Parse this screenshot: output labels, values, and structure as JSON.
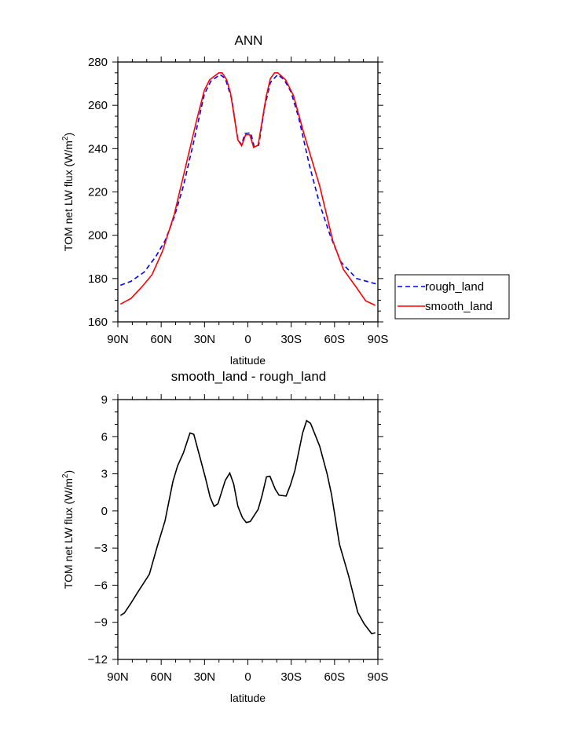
{
  "chart_data": [
    {
      "type": "line",
      "title": "ANN",
      "xlabel": "latitude",
      "ylabel": "TOM net LW flux (W/m",
      "ylabel_sup": "2",
      "ylabel_end": ")",
      "xlim": [
        90,
        -90
      ],
      "ylim": [
        160,
        280
      ],
      "xticks": [
        90,
        60,
        30,
        0,
        -30,
        -60,
        -90
      ],
      "xtick_labels": [
        "90N",
        "60N",
        "30N",
        "0",
        "30S",
        "60S",
        "90S"
      ],
      "yticks": [
        160,
        180,
        200,
        220,
        240,
        260,
        280
      ],
      "ytick_labels": [
        "160",
        "180",
        "200",
        "220",
        "240",
        "260",
        "280"
      ],
      "x_minor_step": 10,
      "y_minor_step": 5,
      "grid": false,
      "legend_position": "outside-right",
      "series": [
        {
          "name": "rough_land",
          "color": "#0000ff",
          "dash": "dashed",
          "x": [
            88.2,
            80.9,
            71.8,
            63.7,
            57.3,
            51,
            44.6,
            37.4,
            30.1,
            25.6,
            19.2,
            15.6,
            11.1,
            6.9,
            4.3,
            2,
            -2,
            -4.4,
            -7.5,
            -11.6,
            -15.6,
            -20.7,
            -25.2,
            -29.8,
            -35.2,
            -42.5,
            -49.7,
            -57,
            -64.3,
            -75.2,
            -88.8
          ],
          "y": [
            176.9,
            178.7,
            183,
            190.2,
            197.5,
            208.3,
            222.8,
            243.4,
            265.1,
            271.2,
            274.2,
            272.4,
            262.7,
            244,
            241.9,
            247,
            247.3,
            240.8,
            241.6,
            259.1,
            270.6,
            274.2,
            271.8,
            266.3,
            254.3,
            232.5,
            214.4,
            199.9,
            187.8,
            180,
            177.5
          ]
        },
        {
          "name": "smooth_land",
          "color": "#ff0000",
          "dash": "solid",
          "x": [
            88.2,
            80.9,
            73.7,
            66.4,
            59.1,
            51,
            42.8,
            35.5,
            30.1,
            26.5,
            20.1,
            17.8,
            14.7,
            12,
            6.9,
            4.3,
            1.5,
            -1.3,
            -4,
            -7.1,
            -12.6,
            -15.6,
            -18.5,
            -20.7,
            -26.1,
            -31.6,
            -38.8,
            -49.7,
            -58.8,
            -66.1,
            -75.2,
            -81.5,
            -88.2
          ],
          "y": [
            168.2,
            170.8,
            175.9,
            181.7,
            192.6,
            209.5,
            232.5,
            253,
            266.9,
            271.8,
            275,
            275,
            271.8,
            265.7,
            244,
            241.3,
            246.4,
            246.4,
            240.6,
            241.6,
            263.9,
            272.4,
            275,
            275,
            271.8,
            264.5,
            247,
            222.8,
            197.5,
            184.2,
            175.8,
            169.7,
            167.6
          ]
        }
      ]
    },
    {
      "type": "line",
      "title": "smooth_land - rough_land",
      "xlabel": "latitude",
      "ylabel": "TOM net LW flux (W/m",
      "ylabel_sup": "2",
      "ylabel_end": ")",
      "xlim": [
        90,
        -90
      ],
      "ylim": [
        -12,
        9
      ],
      "xticks": [
        90,
        60,
        30,
        0,
        -30,
        -60,
        -90
      ],
      "xtick_labels": [
        "90N",
        "60N",
        "30N",
        "0",
        "30S",
        "60S",
        "90S"
      ],
      "yticks": [
        -12,
        -9,
        -6,
        -3,
        0,
        3,
        6,
        9
      ],
      "ytick_labels": [
        "−12",
        "−9",
        "−6",
        "−3",
        "0",
        "3",
        "6",
        "9"
      ],
      "x_minor_step": 10,
      "y_minor_step": 1,
      "grid": false,
      "series": [
        {
          "name": "smooth_land - rough_land",
          "color": "#000000",
          "dash": "solid",
          "x": [
            88.2,
            85.5,
            80.9,
            76.4,
            68.2,
            62.8,
            57.3,
            51.9,
            48.6,
            44.6,
            40.1,
            37.4,
            32.8,
            29.2,
            26.1,
            23.4,
            20.7,
            15.6,
            12.5,
            9.8,
            6.9,
            3.8,
            1.1,
            -1.7,
            -7.1,
            -9.8,
            -12.9,
            -15.3,
            -18.9,
            -21.6,
            -26.5,
            -29.4,
            -32.5,
            -37.9,
            -40.7,
            -43.4,
            -49.7,
            -54.8,
            -57.9,
            -63.4,
            -69.7,
            -76.1,
            -80.6,
            -85.7,
            -88.2
          ],
          "y": [
            -8.44,
            -8.25,
            -7.45,
            -6.6,
            -5.12,
            -2.9,
            -0.79,
            2.38,
            3.65,
            4.7,
            6.3,
            6.19,
            4.18,
            2.6,
            1.1,
            0.37,
            0.58,
            2.48,
            3.06,
            2.17,
            0.37,
            -0.53,
            -0.94,
            -0.85,
            0.13,
            1.23,
            2.75,
            2.8,
            1.76,
            1.27,
            1.2,
            2.08,
            3.25,
            6.3,
            7.3,
            7.08,
            5.24,
            3.02,
            1.33,
            -2.69,
            -5.23,
            -8.2,
            -9.14,
            -9.92,
            -9.84
          ]
        }
      ]
    }
  ]
}
